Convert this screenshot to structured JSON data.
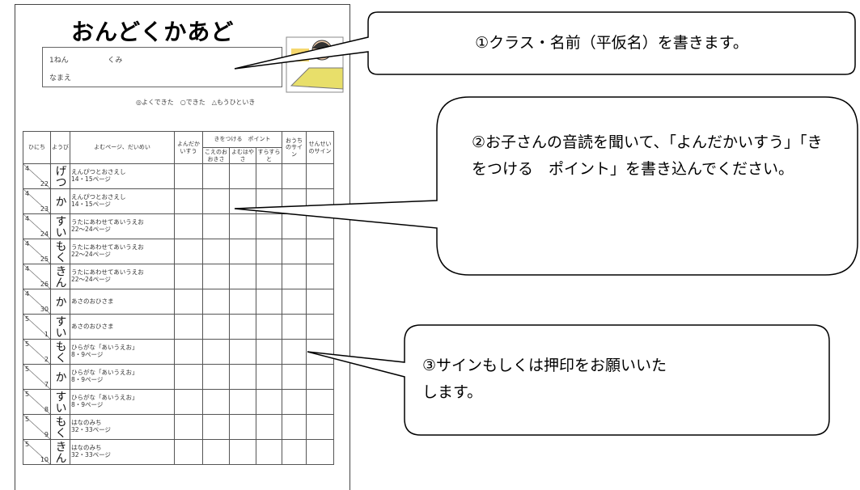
{
  "worksheet": {
    "title": "おんどくかあど",
    "grade_label": "1ねん",
    "class_label": "くみ",
    "name_label": "なまえ",
    "legend": "◎よくできた　○できた　△もうひといき",
    "columns": {
      "date": "ひにち",
      "weekday": "ようび",
      "reading": "よむページ、だいめい",
      "count": "よんだかいすう",
      "points": "きをつける　ポイント",
      "point_items": [
        "こえのおおきさ",
        "よむはやさ",
        "すらすらと"
      ],
      "home_sign": "おうちのサイン",
      "teacher_sign": "せんせいのサイン"
    },
    "rows": [
      {
        "month": "4",
        "day": "22",
        "weekday": "げつ",
        "reading": [
          "えんぴつとおさえし",
          "14・15ページ"
        ]
      },
      {
        "month": "4",
        "day": "23",
        "weekday": "か",
        "reading": [
          "えんぴつとおさえし",
          "14・15ページ"
        ]
      },
      {
        "month": "4",
        "day": "24",
        "weekday": "すい",
        "reading": [
          "うたにあわせてあいうえお",
          "22～24ページ"
        ]
      },
      {
        "month": "4",
        "day": "25",
        "weekday": "もく",
        "reading": [
          "うたにあわせてあいうえお",
          "22～24ページ"
        ]
      },
      {
        "month": "4",
        "day": "26",
        "weekday": "きん",
        "reading": [
          "うたにあわせてあいうえお",
          "22～24ページ"
        ]
      },
      {
        "month": "4",
        "day": "30",
        "weekday": "か",
        "reading": [
          "あさのおひさま"
        ]
      },
      {
        "month": "5",
        "day": "1",
        "weekday": "すい",
        "reading": [
          "あさのおひさま"
        ]
      },
      {
        "month": "5",
        "day": "2",
        "weekday": "もく",
        "reading": [
          "ひらがな「あいうえお」",
          "8・9ページ"
        ]
      },
      {
        "month": "5",
        "day": "7",
        "weekday": "か",
        "reading": [
          "ひらがな「あいうえお」",
          "8・9ページ"
        ]
      },
      {
        "month": "5",
        "day": "8",
        "weekday": "すい",
        "reading": [
          "ひらがな「あいうえお」",
          "8・9ページ"
        ]
      },
      {
        "month": "5",
        "day": "9",
        "weekday": "もく",
        "reading": [
          "はなのみち",
          "32・33ページ"
        ]
      },
      {
        "month": "5",
        "day": "10",
        "weekday": "きん",
        "reading": [
          "はなのみち",
          "32・33ページ"
        ]
      }
    ]
  },
  "callouts": [
    {
      "text": "①クラス・名前（平仮名）を書きます。"
    },
    {
      "text": "②お子さんの音読を聞いて、「よんだかいすう」「きをつける　ポイント」を書き込んでください。"
    },
    {
      "text": "③サインもしくは押印をお願いいたします。"
    }
  ]
}
